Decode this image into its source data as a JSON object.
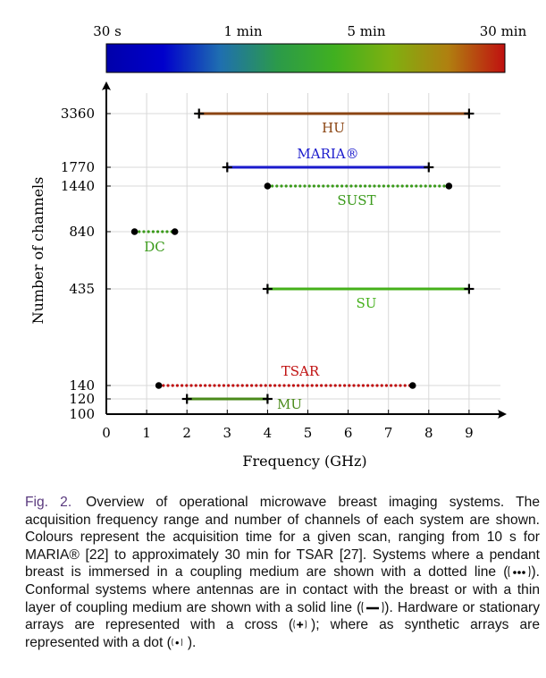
{
  "figure": {
    "label": "Fig. 2.",
    "caption": [
      "Overview of operational microwave breast imaging systems. The acquisition frequency range and number of channels of each system are shown. Colours represent the acquisition time for a given scan, ranging from 10 s for MARIA",
      "® [22] to approximately 30 min for TSAR [27]. Systems where a pendant breast is immersed in a coupling medium are shown with a dotted line (",
      "). Conformal systems where antennas are in contact with the breast or with a thin layer of coupling medium are shown with a solid line (",
      "). Hardware or stationary arrays are represented with a cross (",
      "); where as synthetic arrays are represented with a dot (",
      ")."
    ]
  },
  "chart_data": {
    "type": "interval",
    "xlabel": "Frequency (GHz)",
    "ylabel": "Number of channels",
    "xlim": [
      0,
      10
    ],
    "xticks": [
      "0",
      "1",
      "2",
      "3",
      "4",
      "5",
      "6",
      "7",
      "8",
      "9"
    ],
    "yticks": [
      "3360",
      "1770",
      "1440",
      "840",
      "435",
      "140",
      "120",
      "100"
    ],
    "grid": true,
    "colorbar": {
      "labels": [
        "30 s",
        "1 min",
        "5 min",
        "30 min"
      ],
      "colors": [
        "#0000aa",
        "#0000cc",
        "#1f6fb0",
        "#2b9a4a",
        "#40b020",
        "#7fb010",
        "#b08010",
        "#c01010"
      ]
    },
    "systems": [
      {
        "name": "HU",
        "channels": "3360",
        "f_min": 2.3,
        "f_max": 9.0,
        "line": "solid",
        "array": "cross",
        "color": "#8b4513"
      },
      {
        "name": "MARIA®",
        "channels": "1770",
        "f_min": 3.0,
        "f_max": 8.0,
        "line": "solid",
        "array": "cross",
        "color": "#1a1acc"
      },
      {
        "name": "SUST",
        "channels": "1440",
        "f_min": 4.0,
        "f_max": 8.5,
        "line": "dotted",
        "array": "dot",
        "color": "#3a9a1a"
      },
      {
        "name": "DC",
        "channels": "840",
        "f_min": 0.7,
        "f_max": 1.7,
        "line": "dotted",
        "array": "dot",
        "color": "#3a9a1a"
      },
      {
        "name": "SU",
        "channels": "435",
        "f_min": 4.0,
        "f_max": 9.0,
        "line": "solid",
        "array": "cross",
        "color": "#44b01a"
      },
      {
        "name": "TSAR",
        "channels": "140",
        "f_min": 1.3,
        "f_max": 7.6,
        "line": "dotted",
        "array": "dot",
        "color": "#c01010"
      },
      {
        "name": "MU",
        "channels": "120",
        "f_min": 2.0,
        "f_max": 4.0,
        "line": "solid",
        "array": "cross",
        "color": "#4a8a1a"
      }
    ]
  }
}
